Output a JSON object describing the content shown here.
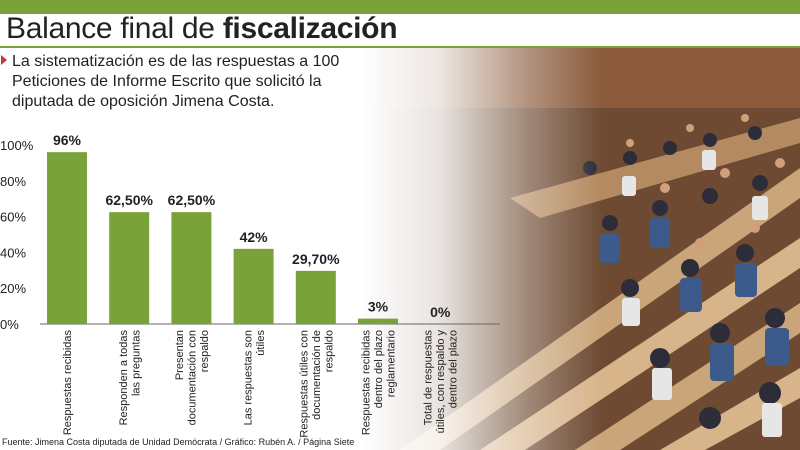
{
  "header": {
    "title_regular": "Balance final de ",
    "title_bold": "fiscalización"
  },
  "intro": {
    "lines": [
      "La sistematización es de las respuestas a 100",
      "Peticiones de Informe Escrito que solicitó la",
      "diputada de oposición Jimena Costa."
    ]
  },
  "source": "Fuente: Jimena Costa diputada de Unidad Demócrata / Gráfico: Rubén A. / Página Siete",
  "colors": {
    "bar": "#7aa23a",
    "accent": "#7aa23a",
    "marker": "#c0392b"
  },
  "chart_data": {
    "type": "bar",
    "title": "",
    "xlabel": "",
    "ylabel": "",
    "ylim": [
      0,
      100
    ],
    "y_ticks": [
      "0%",
      "20%",
      "40%",
      "60%",
      "80%",
      "100%"
    ],
    "grid": false,
    "categories": [
      [
        "Respuestas recibidas"
      ],
      [
        "Responden a todas",
        "las preguntas"
      ],
      [
        "Presentan",
        "documentación con",
        "respaldo"
      ],
      [
        "Las respuestas son",
        "útiles"
      ],
      [
        "Respuestas útiles con",
        "documentación de",
        "respaldo"
      ],
      [
        "Respuestas recibidas",
        "dentro del plazo",
        "reglamentario"
      ],
      [
        "Total de respuestas",
        "útiles, con respaldo y",
        "dentro del plazo"
      ]
    ],
    "values": [
      96,
      62.5,
      62.5,
      42,
      29.7,
      3,
      0
    ],
    "data_labels": [
      "96%",
      "62,50%",
      "62,50%",
      "42%",
      "29,70%",
      "3%",
      "0%"
    ]
  }
}
